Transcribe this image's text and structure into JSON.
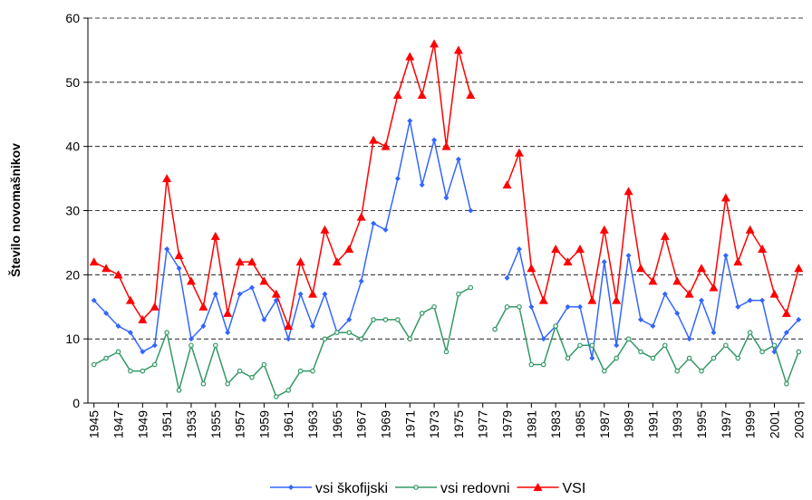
{
  "chart_data": {
    "type": "line",
    "y_label": "Število novomašnikov",
    "x": [
      1945,
      1946,
      1947,
      1948,
      1949,
      1950,
      1951,
      1952,
      1953,
      1954,
      1955,
      1956,
      1957,
      1958,
      1959,
      1960,
      1961,
      1962,
      1963,
      1964,
      1965,
      1966,
      1967,
      1968,
      1969,
      1970,
      1971,
      1972,
      1973,
      1974,
      1975,
      1976,
      1977,
      1978,
      1979,
      1980,
      1981,
      1982,
      1983,
      1984,
      1985,
      1986,
      1987,
      1988,
      1989,
      1990,
      1991,
      1992,
      1993,
      1994,
      1995,
      1996,
      1997,
      1998,
      1999,
      2000,
      2001,
      2002,
      2003
    ],
    "xlim": [
      1944.5,
      2003.5
    ],
    "xticks": [
      1945,
      1947,
      1949,
      1951,
      1953,
      1955,
      1957,
      1959,
      1961,
      1963,
      1965,
      1967,
      1969,
      1971,
      1973,
      1975,
      1977,
      1979,
      1981,
      1983,
      1985,
      1987,
      1989,
      1991,
      1993,
      1995,
      1997,
      1999,
      2001,
      2003
    ],
    "ylim": [
      0,
      60
    ],
    "yticks": [
      0,
      10,
      20,
      30,
      40,
      50,
      60
    ],
    "grid": true,
    "legend": "bottom",
    "series": [
      {
        "name": "vsi škofijski",
        "color": "#3366ff",
        "marker": "diamond",
        "values": [
          16,
          14,
          12,
          11,
          8,
          9,
          24,
          21,
          10,
          12,
          17,
          11,
          17,
          18,
          13,
          16,
          10,
          17,
          12,
          17,
          11,
          13,
          19,
          28,
          27,
          35,
          44,
          34,
          41,
          32,
          38,
          30,
          null,
          null,
          19.5,
          24,
          15,
          10,
          12,
          15,
          15,
          7,
          22,
          9,
          23,
          13,
          12,
          17,
          14,
          10,
          16,
          11,
          23,
          15,
          16,
          16,
          8,
          11,
          13
        ]
      },
      {
        "name": "vsi redovni",
        "color": "#339966",
        "marker": "circle",
        "values": [
          6,
          7,
          8,
          5,
          5,
          6,
          11,
          2,
          9,
          3,
          9,
          3,
          5,
          4,
          6,
          1,
          2,
          5,
          5,
          10,
          11,
          11,
          10,
          13,
          13,
          13,
          10,
          14,
          15,
          8,
          17,
          18,
          null,
          11.5,
          15,
          15,
          6,
          6,
          12,
          7,
          9,
          9,
          5,
          7,
          10,
          8,
          7,
          9,
          5,
          7,
          5,
          7,
          9,
          7,
          11,
          8,
          9,
          3,
          8
        ]
      },
      {
        "name": "VSI",
        "color": "#ff0000",
        "marker": "triangle",
        "values": [
          22,
          21,
          20,
          16,
          13,
          15,
          35,
          23,
          19,
          15,
          26,
          14,
          22,
          22,
          19,
          17,
          12,
          22,
          17,
          27,
          22,
          24,
          29,
          41,
          40,
          48,
          54,
          48,
          56,
          40,
          55,
          48,
          null,
          null,
          34,
          39,
          21,
          16,
          24,
          22,
          24,
          16,
          27,
          16,
          33,
          21,
          19,
          26,
          19,
          17,
          21,
          18,
          32,
          22,
          27,
          24,
          17,
          14,
          21
        ]
      }
    ]
  }
}
